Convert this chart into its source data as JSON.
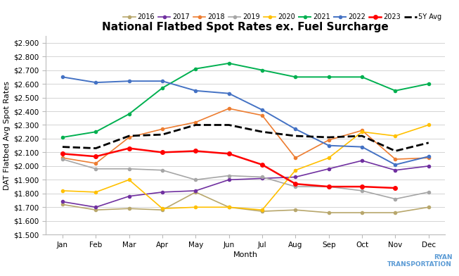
{
  "title": "National Flatbed Spot Rates ex. Fuel Surcharge",
  "xlabel": "Month",
  "ylabel": "DAT Flatbed Avg Spot Rates",
  "months": [
    "Jan",
    "Feb",
    "Mar",
    "Apr",
    "May",
    "Jun",
    "Jul",
    "Aug",
    "Sep",
    "Oct",
    "Nov",
    "Dec"
  ],
  "ylim": [
    1.5,
    2.95
  ],
  "yticks": [
    1.5,
    1.6,
    1.7,
    1.8,
    1.9,
    2.0,
    2.1,
    2.2,
    2.3,
    2.4,
    2.5,
    2.6,
    2.7,
    2.8,
    2.9
  ],
  "series": {
    "2016": {
      "color": "#b8a76c",
      "values": [
        1.72,
        1.68,
        1.69,
        1.68,
        1.81,
        1.7,
        1.67,
        1.68,
        1.66,
        1.66,
        1.66,
        1.7
      ],
      "linewidth": 1.2,
      "marker": "o",
      "markersize": 3,
      "zorder": 2,
      "linestyle": "-"
    },
    "2017": {
      "color": "#7030a0",
      "values": [
        1.74,
        1.7,
        1.78,
        1.81,
        1.82,
        1.9,
        1.91,
        1.92,
        1.98,
        2.04,
        1.97,
        2.0
      ],
      "linewidth": 1.2,
      "marker": "o",
      "markersize": 3,
      "zorder": 2,
      "linestyle": "-"
    },
    "2018": {
      "color": "#ed7d31",
      "values": [
        2.06,
        2.02,
        2.21,
        2.27,
        2.32,
        2.42,
        2.37,
        2.06,
        2.19,
        2.26,
        2.05,
        2.06
      ],
      "linewidth": 1.2,
      "marker": "o",
      "markersize": 3,
      "zorder": 2,
      "linestyle": "-"
    },
    "2019": {
      "color": "#a6a6a6",
      "values": [
        2.05,
        1.98,
        1.98,
        1.97,
        1.9,
        1.93,
        1.92,
        1.85,
        1.85,
        1.82,
        1.76,
        1.81
      ],
      "linewidth": 1.2,
      "marker": "o",
      "markersize": 3,
      "zorder": 2,
      "linestyle": "-"
    },
    "2020": {
      "color": "#ffc000",
      "values": [
        1.82,
        1.81,
        1.9,
        1.69,
        1.7,
        1.7,
        1.68,
        1.97,
        2.06,
        2.25,
        2.22,
        2.3
      ],
      "linewidth": 1.2,
      "marker": "o",
      "markersize": 3,
      "zorder": 2,
      "linestyle": "-"
    },
    "2021": {
      "color": "#00b050",
      "values": [
        2.21,
        2.25,
        2.38,
        2.57,
        2.71,
        2.75,
        2.7,
        2.65,
        2.65,
        2.65,
        2.55,
        2.6
      ],
      "linewidth": 1.4,
      "marker": "o",
      "markersize": 3,
      "zorder": 3,
      "linestyle": "-"
    },
    "2022": {
      "color": "#4472c4",
      "values": [
        2.65,
        2.61,
        2.62,
        2.62,
        2.55,
        2.53,
        2.41,
        2.27,
        2.15,
        2.14,
        2.01,
        2.07
      ],
      "linewidth": 1.4,
      "marker": "o",
      "markersize": 3,
      "zorder": 3,
      "linestyle": "-"
    },
    "2023": {
      "color": "#ff0000",
      "values": [
        2.09,
        2.07,
        2.13,
        2.1,
        2.11,
        2.09,
        2.01,
        1.87,
        1.85,
        1.85,
        1.84,
        null
      ],
      "linewidth": 1.8,
      "marker": "o",
      "markersize": 4,
      "zorder": 4,
      "linestyle": "-"
    },
    "5Y Avg": {
      "color": "#000000",
      "values": [
        2.14,
        2.13,
        2.22,
        2.23,
        2.3,
        2.3,
        2.25,
        2.22,
        2.21,
        2.22,
        2.11,
        2.17
      ],
      "linewidth": 2.0,
      "linestyle": "--",
      "marker": null,
      "markersize": 0,
      "zorder": 5
    }
  },
  "legend_order": [
    "2016",
    "2017",
    "2018",
    "2019",
    "2020",
    "2021",
    "2022",
    "2023",
    "5Y Avg"
  ],
  "background_color": "#ffffff",
  "grid_color": "#d4d4d4",
  "title_fontsize": 11,
  "label_fontsize": 8,
  "tick_fontsize": 7.5,
  "legend_fontsize": 7
}
